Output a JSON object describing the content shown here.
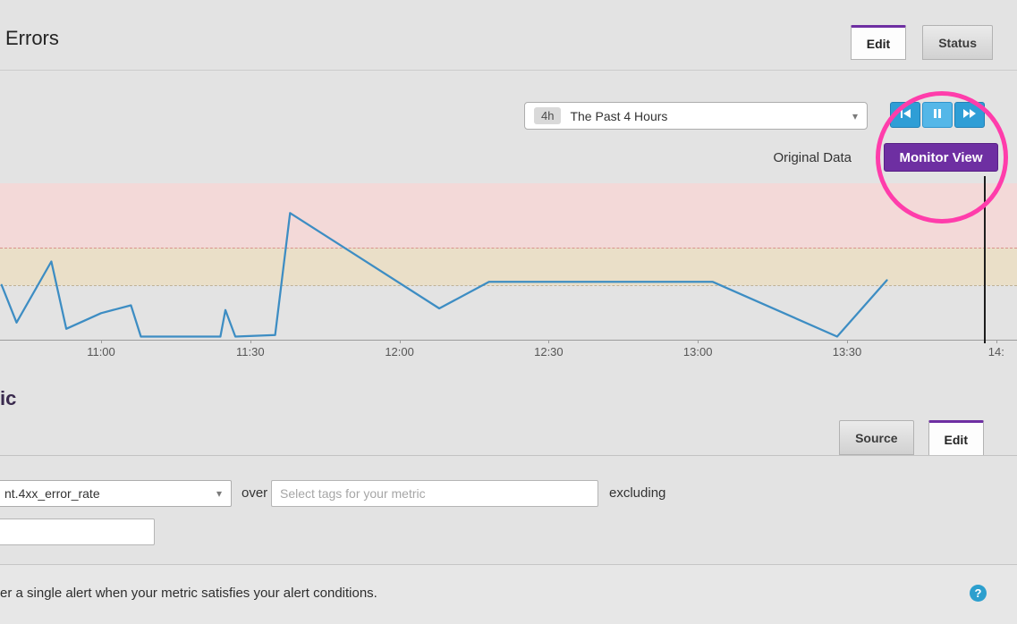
{
  "header": {
    "title": "Errors",
    "tabs": [
      {
        "label": "Edit",
        "active": true
      },
      {
        "label": "Status",
        "active": false
      }
    ]
  },
  "toolbar": {
    "timeframe": {
      "badge": "4h",
      "label": "The Past 4 Hours"
    },
    "playback": [
      "rewind-icon",
      "pause-icon",
      "fast-forward-icon"
    ],
    "original_data_label": "Original Data",
    "monitor_view_label": "Monitor View"
  },
  "icons": {
    "chevron_down": "▾"
  },
  "chart_data": {
    "type": "line",
    "title": "",
    "xlabel": "",
    "ylabel": "",
    "x_ticks": [
      {
        "label": "11:00",
        "t": "11:00"
      },
      {
        "label": "11:30",
        "t": "11:30"
      },
      {
        "label": "12:00",
        "t": "12:00"
      },
      {
        "label": "12:30",
        "t": "12:30"
      },
      {
        "label": "13:00",
        "t": "13:00"
      },
      {
        "label": "13:30",
        "t": "13:30"
      },
      {
        "label": "14:",
        "t": "14:00"
      }
    ],
    "ylim": [
      0,
      100
    ],
    "y_units": "relative plot height (y-axis labels not visible in view)",
    "series": [
      {
        "name": "4xx_error_rate",
        "color": "#3d8dc3",
        "points": [
          [
            "10:40",
            35
          ],
          [
            "10:43",
            11
          ],
          [
            "10:50",
            50
          ],
          [
            "10:53",
            7
          ],
          [
            "11:00",
            17
          ],
          [
            "11:06",
            22
          ],
          [
            "11:08",
            2
          ],
          [
            "11:24",
            2
          ],
          [
            "11:25",
            19
          ],
          [
            "11:27",
            2
          ],
          [
            "11:35",
            3
          ],
          [
            "11:38",
            81
          ],
          [
            "12:08",
            20
          ],
          [
            "12:18",
            37
          ],
          [
            "13:03",
            37
          ],
          [
            "13:28",
            2
          ],
          [
            "13:38",
            38
          ]
        ]
      }
    ],
    "thresholds": {
      "alert": 59,
      "warning": 35
    },
    "zone_colors": {
      "alert": "#f3d9d8",
      "warning": "#eadfc8"
    },
    "cursor_time": "13:57",
    "grid": false,
    "legend": "none"
  },
  "metric_section": {
    "heading_fragment": "ic",
    "tabs": [
      {
        "label": "Source",
        "active": false
      },
      {
        "label": "Edit",
        "active": true
      }
    ],
    "query": {
      "metric_value": "nt.4xx_error_rate",
      "over_label": "over",
      "tags_placeholder": "Select tags for your metric",
      "excluding_label": "excluding",
      "excluding_value": ""
    }
  },
  "footer": {
    "text": "er a single alert when your metric satisfies your alert conditions.",
    "help_label": "?"
  }
}
